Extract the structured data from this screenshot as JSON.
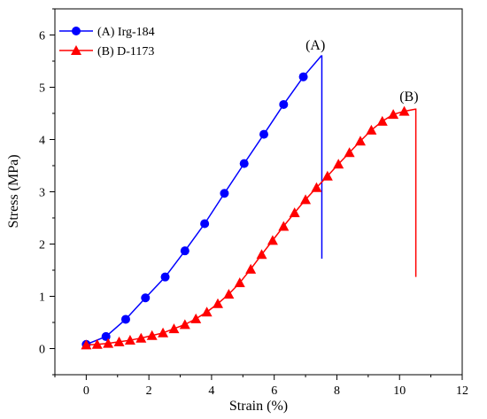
{
  "chart_data": {
    "type": "line",
    "xlabel": "Strain (%)",
    "ylabel": "Stress (MPa)",
    "xlim": [
      -1,
      12
    ],
    "ylim": [
      -0.5,
      6.5
    ],
    "x_ticks": [
      0,
      2,
      4,
      6,
      8,
      10,
      12
    ],
    "y_ticks": [
      0,
      1,
      2,
      3,
      4,
      5,
      6
    ],
    "grid": false,
    "legend_position": "top-left",
    "series": [
      {
        "name": "(A) Irg-184",
        "color": "#0000ff",
        "marker": "circle",
        "x": [
          0,
          0.63,
          1.26,
          1.89,
          2.52,
          3.15,
          3.78,
          4.41,
          5.04,
          5.67,
          6.3,
          6.93,
          7.5,
          7.52,
          7.52
        ],
        "y": [
          0.08,
          0.23,
          0.56,
          0.97,
          1.37,
          1.87,
          2.39,
          2.97,
          3.54,
          4.1,
          4.67,
          5.2,
          5.6,
          5.6,
          1.72
        ],
        "marker_x": [
          0,
          0.63,
          1.26,
          1.89,
          2.52,
          3.15,
          3.78,
          4.41,
          5.04,
          5.67,
          6.3,
          6.93
        ],
        "marker_y": [
          0.08,
          0.23,
          0.56,
          0.97,
          1.37,
          1.87,
          2.39,
          2.97,
          3.54,
          4.1,
          4.67,
          5.2
        ],
        "annotation": "(A)",
        "annotation_at": [
          7.0,
          5.72
        ]
      },
      {
        "name": "(B) D-1173",
        "color": "#ff0000",
        "marker": "triangle",
        "x": [
          0,
          0.35,
          0.7,
          1.05,
          1.4,
          1.75,
          2.1,
          2.45,
          2.8,
          3.15,
          3.5,
          3.85,
          4.2,
          4.55,
          4.9,
          5.25,
          5.6,
          5.95,
          6.3,
          6.65,
          7.0,
          7.35,
          7.7,
          8.05,
          8.4,
          8.75,
          9.1,
          9.45,
          9.8,
          10.15,
          10.5,
          10.52,
          10.52
        ],
        "y": [
          0.07,
          0.08,
          0.1,
          0.13,
          0.16,
          0.2,
          0.25,
          0.3,
          0.38,
          0.46,
          0.57,
          0.7,
          0.86,
          1.04,
          1.26,
          1.52,
          1.8,
          2.07,
          2.34,
          2.6,
          2.85,
          3.08,
          3.3,
          3.53,
          3.75,
          3.97,
          4.18,
          4.35,
          4.48,
          4.54,
          4.58,
          4.58,
          1.37
        ],
        "marker_x": [
          0,
          0.35,
          0.7,
          1.05,
          1.4,
          1.75,
          2.1,
          2.45,
          2.8,
          3.15,
          3.5,
          3.85,
          4.2,
          4.55,
          4.9,
          5.25,
          5.6,
          5.95,
          6.3,
          6.65,
          7.0,
          7.35,
          7.7,
          8.05,
          8.4,
          8.75,
          9.1,
          9.45,
          9.8,
          10.15
        ],
        "marker_y": [
          0.07,
          0.08,
          0.1,
          0.13,
          0.16,
          0.2,
          0.25,
          0.3,
          0.38,
          0.46,
          0.57,
          0.7,
          0.86,
          1.04,
          1.26,
          1.52,
          1.8,
          2.07,
          2.34,
          2.6,
          2.85,
          3.08,
          3.3,
          3.53,
          3.75,
          3.97,
          4.18,
          4.35,
          4.48,
          4.54
        ],
        "annotation": "(B)",
        "annotation_at": [
          10.0,
          4.74
        ]
      }
    ]
  }
}
